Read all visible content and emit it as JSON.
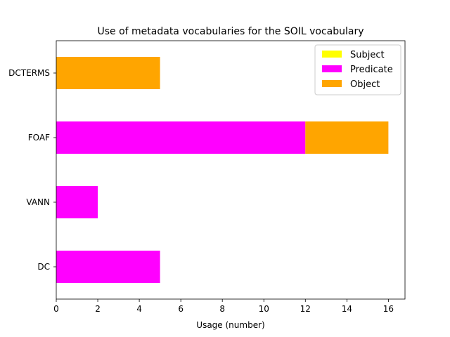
{
  "chart_data": {
    "type": "bar",
    "orientation": "horizontal",
    "stacked": true,
    "title": "Use of metadata vocabularies for the SOIL vocabulary",
    "xlabel": "Usage (number)",
    "ylabel": "",
    "xlim": [
      0,
      16.8
    ],
    "xticks": [
      0,
      2,
      4,
      6,
      8,
      10,
      12,
      14,
      16
    ],
    "categories": [
      "DC",
      "VANN",
      "FOAF",
      "DCTERMS"
    ],
    "series": [
      {
        "name": "Subject",
        "color": "#ffff00",
        "values": [
          0,
          0,
          0,
          0
        ]
      },
      {
        "name": "Predicate",
        "color": "#ff00ff",
        "values": [
          5,
          2,
          12,
          0
        ]
      },
      {
        "name": "Object",
        "color": "#ffa500",
        "values": [
          0,
          0,
          4,
          5
        ]
      }
    ],
    "legend_position": "top-right",
    "grid": false
  }
}
